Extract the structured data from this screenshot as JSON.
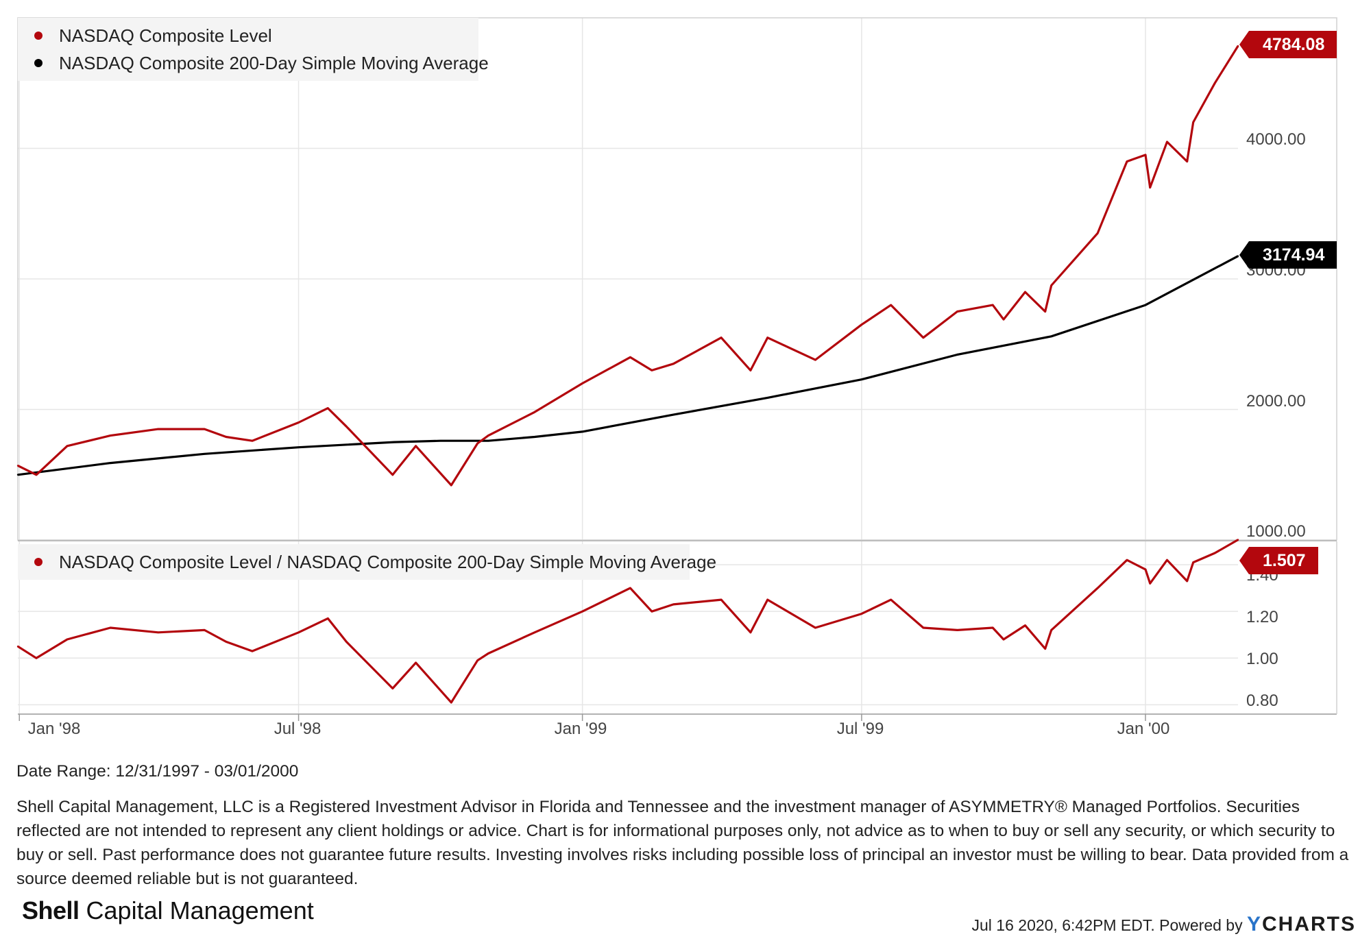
{
  "colors": {
    "level": "#b3070d",
    "sma": "#000000",
    "grid": "#e6e6e6"
  },
  "chart_data": [
    {
      "type": "line",
      "title": "",
      "x_range": [
        "1997-12-31",
        "2000-03-01"
      ],
      "y_ticks": [
        "1000.00",
        "2000.00",
        "3000.00",
        "4000.00"
      ],
      "ylim": [
        1000,
        5000
      ],
      "series": [
        {
          "name": "NASDAQ Composite Level",
          "last_value_label": "4784.08",
          "x": [
            "1997-12-31",
            "1998-01-12",
            "1998-02-01",
            "1998-03-01",
            "1998-04-01",
            "1998-05-01",
            "1998-05-15",
            "1998-06-01",
            "1998-07-01",
            "1998-07-20",
            "1998-08-01",
            "1998-08-31",
            "1998-09-15",
            "1998-10-08",
            "1998-10-25",
            "1998-11-01",
            "1998-12-01",
            "1999-01-01",
            "1999-02-01",
            "1999-02-15",
            "1999-03-01",
            "1999-04-01",
            "1999-04-20",
            "1999-05-01",
            "1999-06-01",
            "1999-07-01",
            "1999-07-20",
            "1999-08-10",
            "1999-09-01",
            "1999-09-24",
            "1999-10-01",
            "1999-10-15",
            "1999-10-28",
            "1999-11-01",
            "1999-12-01",
            "1999-12-20",
            "2000-01-01",
            "2000-01-04",
            "2000-01-15",
            "2000-01-28",
            "2000-02-01",
            "2000-02-15",
            "2000-03-01"
          ],
          "values": [
            1570,
            1500,
            1720,
            1800,
            1850,
            1850,
            1790,
            1760,
            1900,
            2010,
            1870,
            1500,
            1720,
            1420,
            1740,
            1800,
            1980,
            2200,
            2400,
            2300,
            2350,
            2550,
            2300,
            2550,
            2380,
            2650,
            2800,
            2550,
            2750,
            2800,
            2690,
            2900,
            2750,
            2950,
            3350,
            3900,
            3950,
            3700,
            4050,
            3900,
            4200,
            4500,
            4784.08
          ]
        },
        {
          "name": "NASDAQ Composite 200-Day Simple Moving Average",
          "last_value_label": "3174.94",
          "x": [
            "1997-12-31",
            "1998-03-01",
            "1998-05-01",
            "1998-07-01",
            "1998-09-01",
            "1998-10-01",
            "1998-11-01",
            "1998-12-01",
            "1999-01-01",
            "1999-03-01",
            "1999-05-01",
            "1999-07-01",
            "1999-09-01",
            "1999-11-01",
            "2000-01-01",
            "2000-03-01"
          ],
          "values": [
            1500,
            1590,
            1660,
            1710,
            1750,
            1760,
            1760,
            1790,
            1830,
            1960,
            2090,
            2230,
            2420,
            2560,
            2800,
            3174.94
          ]
        }
      ]
    },
    {
      "type": "line",
      "title": "",
      "x_range": [
        "1997-12-31",
        "2000-03-01"
      ],
      "x_ticks": [
        "Jan '98",
        "Jul '98",
        "Jan '99",
        "Jul '99",
        "Jan '00"
      ],
      "y_ticks": [
        "0.80",
        "1.00",
        "1.20",
        "1.40"
      ],
      "ylim": [
        0.76,
        1.5
      ],
      "series": [
        {
          "name": "NASDAQ Composite Level / NASDAQ Composite 200-Day Simple Moving Average",
          "last_value_label": "1.507",
          "x": [
            "1997-12-31",
            "1998-01-12",
            "1998-02-01",
            "1998-03-01",
            "1998-04-01",
            "1998-05-01",
            "1998-05-15",
            "1998-06-01",
            "1998-07-01",
            "1998-07-20",
            "1998-08-01",
            "1998-08-31",
            "1998-09-15",
            "1998-10-08",
            "1998-10-25",
            "1998-11-01",
            "1998-12-01",
            "1999-01-01",
            "1999-02-01",
            "1999-02-15",
            "1999-03-01",
            "1999-04-01",
            "1999-04-20",
            "1999-05-01",
            "1999-06-01",
            "1999-07-01",
            "1999-07-20",
            "1999-08-10",
            "1999-09-01",
            "1999-09-24",
            "1999-10-01",
            "1999-10-15",
            "1999-10-28",
            "1999-11-01",
            "1999-12-01",
            "1999-12-20",
            "2000-01-01",
            "2000-01-04",
            "2000-01-15",
            "2000-01-28",
            "2000-02-01",
            "2000-02-15",
            "2000-03-01"
          ],
          "values": [
            1.05,
            1.0,
            1.08,
            1.13,
            1.11,
            1.12,
            1.07,
            1.03,
            1.11,
            1.17,
            1.07,
            0.87,
            0.98,
            0.81,
            0.99,
            1.02,
            1.11,
            1.2,
            1.3,
            1.2,
            1.23,
            1.25,
            1.11,
            1.25,
            1.13,
            1.19,
            1.25,
            1.13,
            1.12,
            1.13,
            1.08,
            1.14,
            1.04,
            1.12,
            1.3,
            1.42,
            1.38,
            1.32,
            1.42,
            1.33,
            1.41,
            1.45,
            1.507
          ]
        }
      ]
    }
  ],
  "legend": {
    "top": [
      {
        "label": "NASDAQ Composite Level",
        "color": "#b3070d"
      },
      {
        "label": "NASDAQ Composite 200-Day Simple Moving Average",
        "color": "#000000"
      }
    ],
    "bottom": [
      {
        "label": "NASDAQ Composite Level / NASDAQ Composite 200-Day Simple Moving Average",
        "color": "#b3070d"
      }
    ]
  },
  "footer": {
    "date_range": "Date Range: 12/31/1997 - 03/01/2000",
    "disclaimer": "Shell Capital Management, LLC is a Registered Investment Advisor in Florida and Tennessee and the investment manager of ASYMMETRY® Managed Portfolios. Securities reflected are not intended to represent any client holdings or advice. Chart is for informational purposes only, not advice as to when to buy or sell any security, or which security to buy or sell. Past performance does not guarantee future results. Investing involves risks including possible loss of principal an investor must be willing to bear. Data provided from a source deemed reliable but is not guaranteed.",
    "logo_bold": "Shell",
    "logo_rest": " Capital Management",
    "timestamp": "Jul 16 2020, 6:42PM EDT.",
    "powered_by": "Powered by",
    "brand_y": "Y",
    "brand_rest": "CHARTS"
  }
}
